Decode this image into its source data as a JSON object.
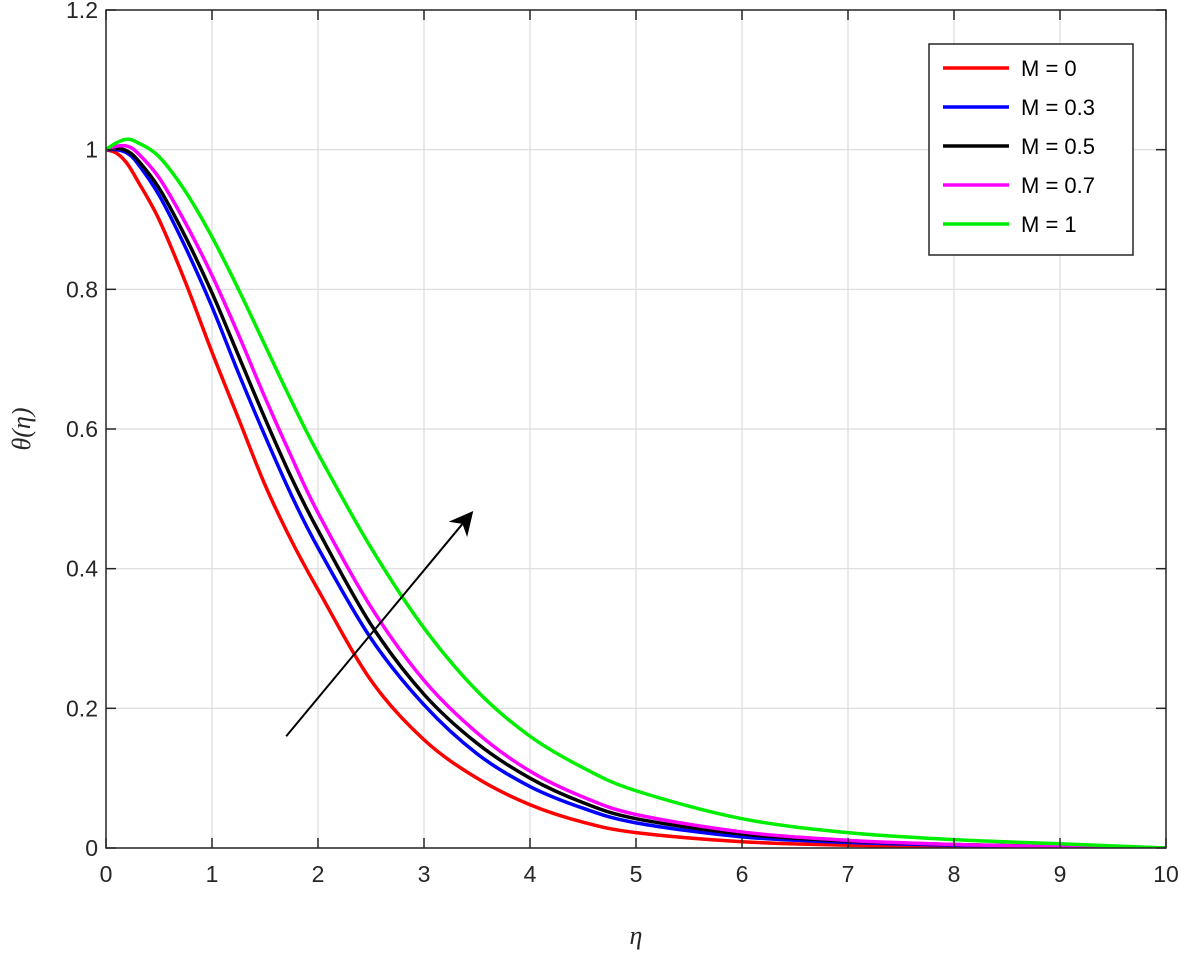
{
  "chart_data": {
    "type": "line",
    "title": "",
    "xlabel": "η",
    "ylabel": "θ(η)",
    "xlim": [
      0,
      10
    ],
    "ylim": [
      0,
      1.2
    ],
    "xticks": [
      "0",
      "1",
      "2",
      "3",
      "4",
      "5",
      "6",
      "7",
      "8",
      "9",
      "10"
    ],
    "yticks": [
      "0",
      "0.2",
      "0.4",
      "0.6",
      "0.8",
      "1",
      "1.2"
    ],
    "grid": true,
    "legend_position": "top-right",
    "x": [
      0,
      0.1,
      0.2,
      0.3,
      0.5,
      0.75,
      1,
      1.25,
      1.5,
      1.75,
      2,
      2.5,
      3,
      3.5,
      4,
      4.5,
      5,
      6,
      7,
      8,
      9,
      10
    ],
    "series": [
      {
        "name": "M = 0",
        "color": "#ff0000",
        "values": [
          1,
          0.995,
          0.98,
          0.955,
          0.9,
          0.81,
          0.71,
          0.615,
          0.52,
          0.44,
          0.37,
          0.24,
          0.155,
          0.1,
          0.062,
          0.037,
          0.022,
          0.009,
          0.004,
          0.002,
          0.001,
          0
        ]
      },
      {
        "name": "M = 0.3",
        "color": "#0000ff",
        "values": [
          1,
          1.0,
          0.995,
          0.98,
          0.935,
          0.86,
          0.775,
          0.68,
          0.59,
          0.505,
          0.43,
          0.3,
          0.205,
          0.135,
          0.088,
          0.057,
          0.036,
          0.016,
          0.008,
          0.004,
          0.002,
          0
        ]
      },
      {
        "name": "M = 0.5",
        "color": "#000000",
        "values": [
          1,
          1.002,
          0.998,
          0.985,
          0.945,
          0.875,
          0.795,
          0.705,
          0.615,
          0.53,
          0.455,
          0.32,
          0.22,
          0.15,
          0.1,
          0.065,
          0.042,
          0.02,
          0.01,
          0.005,
          0.002,
          0
        ]
      },
      {
        "name": "M = 0.7",
        "color": "#ff00ff",
        "values": [
          1,
          1.005,
          1.005,
          0.995,
          0.96,
          0.895,
          0.82,
          0.735,
          0.645,
          0.56,
          0.48,
          0.345,
          0.24,
          0.165,
          0.11,
          0.073,
          0.048,
          0.023,
          0.011,
          0.005,
          0.002,
          0
        ]
      },
      {
        "name": "M = 1",
        "color": "#00ee00",
        "values": [
          1,
          1.01,
          1.015,
          1.01,
          0.99,
          0.94,
          0.875,
          0.8,
          0.72,
          0.64,
          0.565,
          0.43,
          0.315,
          0.225,
          0.16,
          0.115,
          0.082,
          0.042,
          0.022,
          0.012,
          0.006,
          0
        ]
      }
    ],
    "annotation": {
      "type": "arrow",
      "from": [
        1.7,
        0.16
      ],
      "to": [
        3.45,
        0.48
      ]
    }
  }
}
